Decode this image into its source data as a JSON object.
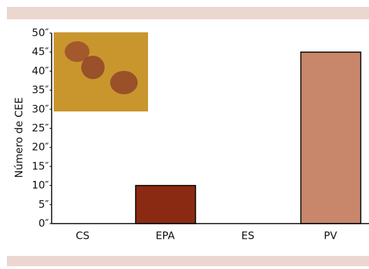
{
  "chart_data": {
    "type": "bar",
    "y_label": "Número de CEE",
    "categories": [
      "CS",
      "EPA",
      "ES",
      "PV"
    ],
    "values": [
      0,
      10,
      0,
      45
    ],
    "colors": [
      "#8b2a12",
      "#8b2a12",
      "#c8866a",
      "#c8866a"
    ],
    "ylim": [
      0,
      50
    ],
    "yticks": [
      {
        "value": 0,
        "label": "0″"
      },
      {
        "value": 5,
        "label": "5″"
      },
      {
        "value": 10,
        "label": "10″"
      },
      {
        "value": 15,
        "label": "15″"
      },
      {
        "value": 20,
        "label": "20″"
      },
      {
        "value": 25,
        "label": "25″"
      },
      {
        "value": 30,
        "label": "30″"
      },
      {
        "value": 35,
        "label": "35″"
      },
      {
        "value": 40,
        "label": "40″"
      },
      {
        "value": 45,
        "label": "45″"
      },
      {
        "value": 50,
        "label": "50″"
      }
    ]
  }
}
